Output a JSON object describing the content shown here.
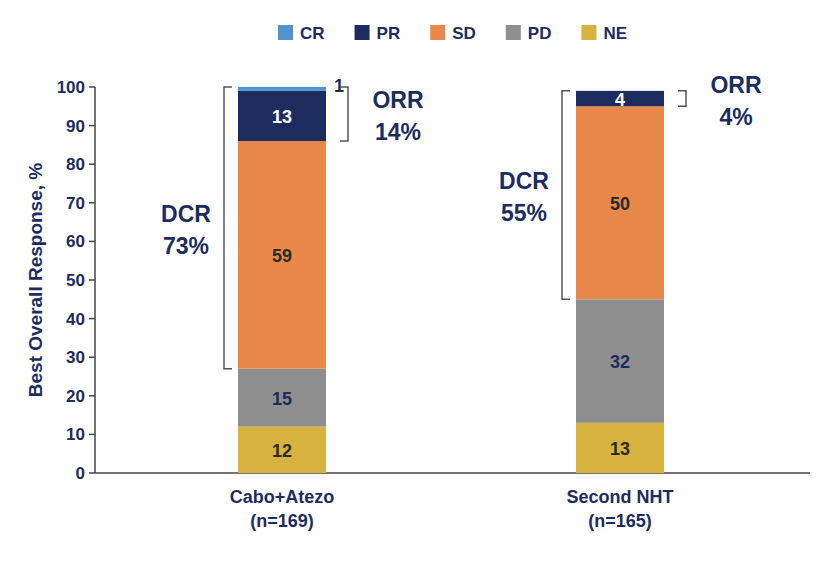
{
  "chart_data": {
    "type": "bar",
    "stacked": true,
    "data_labels": true,
    "legend": "top",
    "grid": false,
    "y_label": "Best Overall Response, %",
    "categories": [
      "Cabo+Atezo\n(n=169)",
      "Second NHT\n(n=165)"
    ],
    "ylim": [
      0,
      100
    ],
    "yticks": [
      0,
      10,
      20,
      30,
      40,
      50,
      60,
      70,
      80,
      90,
      100
    ],
    "series": [
      {
        "name": "CR",
        "color": "#4f93cf",
        "values": [
          1,
          0
        ]
      },
      {
        "name": "PR",
        "color": "#1c2c5e",
        "values": [
          13,
          4
        ]
      },
      {
        "name": "SD",
        "color": "#e8894b",
        "values": [
          59,
          50
        ]
      },
      {
        "name": "PD",
        "color": "#8e8e8e",
        "values": [
          15,
          32
        ]
      },
      {
        "name": "NE",
        "color": "#d8b23e",
        "values": [
          12,
          13
        ]
      }
    ],
    "annotations": [
      {
        "category": 0,
        "text": [
          "ORR",
          "14%"
        ],
        "span": [
          "CR",
          "PR"
        ]
      },
      {
        "category": 0,
        "text": [
          "DCR",
          "73%"
        ],
        "span": [
          "CR",
          "PR",
          "SD"
        ]
      },
      {
        "category": 1,
        "text": [
          "ORR",
          "4%"
        ],
        "span": [
          "CR",
          "PR"
        ]
      },
      {
        "category": 1,
        "text": [
          "DCR",
          "55%"
        ],
        "span": [
          "CR",
          "PR",
          "SD"
        ]
      }
    ]
  }
}
